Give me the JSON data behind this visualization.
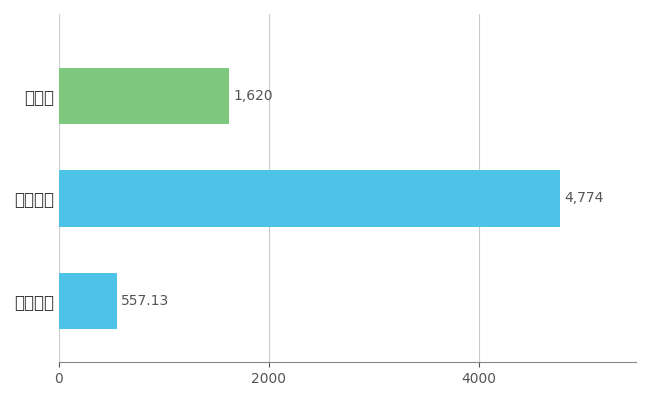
{
  "categories": [
    "全国平均",
    "全国最大",
    "埼玉県"
  ],
  "values": [
    557.13,
    4774,
    1620
  ],
  "bar_colors": [
    "#4dc3e8",
    "#4dc3e8",
    "#7dc87d"
  ],
  "labels": [
    "557.13",
    "4,774",
    "1,620"
  ],
  "xlim": [
    0,
    5500
  ],
  "xticks": [
    0,
    2000,
    4000
  ],
  "background_color": "#ffffff",
  "grid_color": "#cccccc",
  "bar_height": 0.55,
  "label_fontsize": 10,
  "tick_fontsize": 10,
  "label_color": "#555555",
  "figsize": [
    6.5,
    4.0
  ],
  "dpi": 100
}
